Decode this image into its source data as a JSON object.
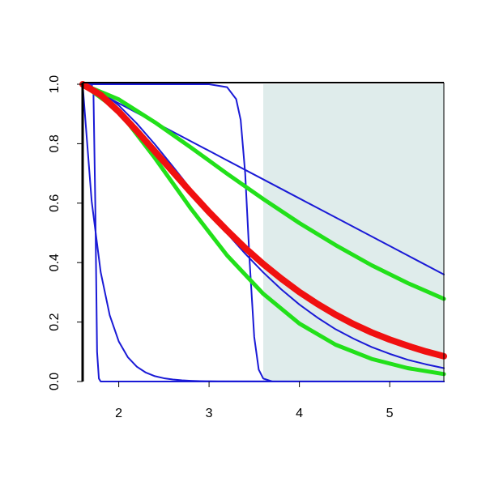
{
  "chart_data": {
    "type": "line",
    "xlim": [
      1.6,
      5.6
    ],
    "ylim": [
      0,
      1
    ],
    "xticks": [
      2,
      3,
      4,
      5
    ],
    "yticks": [
      {
        "value": 0,
        "label": "0.0"
      },
      {
        "value": 0.2,
        "label": "0.2"
      },
      {
        "value": 0.4,
        "label": "0.4"
      },
      {
        "value": 0.6,
        "label": "0.6"
      },
      {
        "value": 0.8,
        "label": "0.8"
      },
      {
        "value": 1,
        "label": "1.0"
      }
    ],
    "shade": {
      "x": [
        3.6,
        5.6
      ],
      "color": "#dfeceb"
    },
    "series": [
      {
        "color": "#1a1ad6",
        "width": 2,
        "x": [
          1.6,
          2.0,
          2.4,
          2.8,
          3.2,
          3.6,
          4.0,
          4.4,
          4.8,
          5.2,
          5.6
        ],
        "values": [
          1,
          0.936,
          0.872,
          0.808,
          0.744,
          0.68,
          0.616,
          0.552,
          0.488,
          0.424,
          0.36
        ]
      },
      {
        "color": "#1a1ad6",
        "width": 2,
        "x": [
          1.6,
          1.7,
          1.72,
          1.74,
          1.76,
          1.78,
          1.8,
          5.6
        ],
        "values": [
          1,
          1,
          0.97,
          0.6,
          0.1,
          0.01,
          0,
          0
        ]
      },
      {
        "color": "#1a1ad6",
        "width": 2,
        "x": [
          1.6,
          3.0,
          3.2,
          3.3,
          3.35,
          3.4,
          3.45,
          3.5,
          3.55,
          3.6,
          3.7,
          5.6
        ],
        "values": [
          1,
          1,
          0.99,
          0.95,
          0.88,
          0.7,
          0.4,
          0.15,
          0.04,
          0.01,
          0,
          0
        ]
      },
      {
        "color": "#1a1ad6",
        "width": 2,
        "x": [
          1.6,
          1.7,
          1.8,
          1.9,
          2.0,
          2.1,
          2.2,
          2.3,
          2.4,
          2.5,
          2.6,
          2.7,
          2.8,
          2.9,
          3.0,
          3.1,
          5.6
        ],
        "values": [
          1,
          0.607,
          0.368,
          0.223,
          0.135,
          0.082,
          0.05,
          0.03,
          0.018,
          0.011,
          0.0067,
          0.0041,
          0.0025,
          0.0015,
          0.0009,
          0.0006,
          0
        ]
      },
      {
        "color": "#1a1ad6",
        "width": 2,
        "x": [
          1.6,
          1.8,
          2.0,
          2.2,
          2.4,
          2.6,
          2.8,
          3.0,
          3.2,
          3.4,
          3.6,
          3.8,
          4.0,
          4.2,
          4.4,
          4.6,
          4.8,
          5.0,
          5.2,
          5.4,
          5.6
        ],
        "values": [
          1,
          0.977,
          0.929,
          0.868,
          0.798,
          0.723,
          0.646,
          0.57,
          0.498,
          0.43,
          0.367,
          0.31,
          0.259,
          0.215,
          0.176,
          0.144,
          0.116,
          0.093,
          0.073,
          0.058,
          0.045
        ]
      },
      {
        "color": "#22e01a",
        "width": 5,
        "x": [
          1.6,
          2.0,
          2.4,
          2.8,
          3.2,
          3.6,
          4.0,
          4.4,
          4.8,
          5.2,
          5.6
        ],
        "values": [
          1,
          0.949,
          0.872,
          0.787,
          0.699,
          0.614,
          0.533,
          0.459,
          0.391,
          0.331,
          0.278
        ]
      },
      {
        "color": "#22e01a",
        "width": 5,
        "x": [
          1.6,
          2.0,
          2.4,
          2.8,
          3.2,
          3.6,
          4.0,
          4.4,
          4.8,
          5.2,
          5.6
        ],
        "values": [
          1,
          0.91,
          0.752,
          0.581,
          0.424,
          0.295,
          0.195,
          0.124,
          0.076,
          0.045,
          0.025
        ]
      },
      {
        "color": "#f01010",
        "width": 8,
        "x": [
          1.6,
          1.8,
          2.0,
          2.2,
          2.4,
          2.6,
          2.8,
          3.0,
          3.2,
          3.4,
          3.6,
          3.8,
          4.0,
          4.2,
          4.4,
          4.6,
          4.8,
          5.0,
          5.2,
          5.4,
          5.6
        ],
        "values": [
          1,
          0.964,
          0.908,
          0.843,
          0.774,
          0.705,
          0.636,
          0.57,
          0.508,
          0.449,
          0.395,
          0.346,
          0.301,
          0.261,
          0.225,
          0.193,
          0.165,
          0.141,
          0.12,
          0.101,
          0.085
        ]
      }
    ]
  }
}
